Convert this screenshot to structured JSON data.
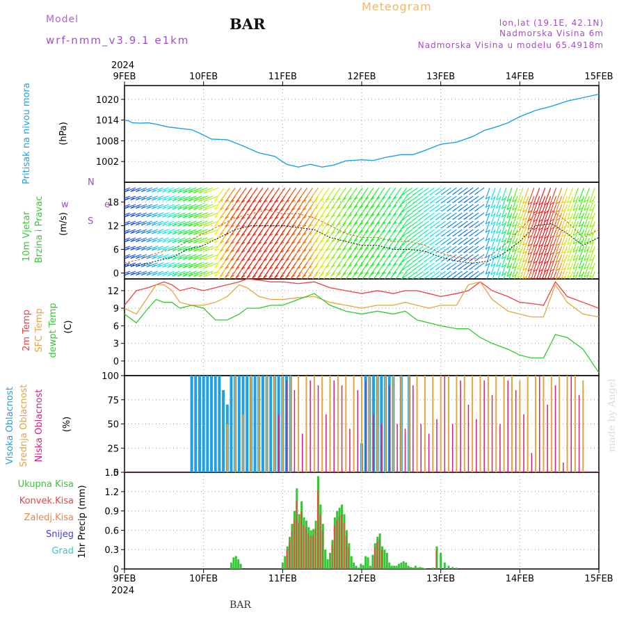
{
  "header": {
    "model_label": "Model",
    "model_name": "wrf-nmm_v3.9.1 e1km",
    "station": "BAR",
    "title": "Meteogram",
    "location": "lon,lat (19.1E, 42.1N)",
    "elevation": "Nadmorska Visina 6m",
    "model_elevation": "Nadmorska Visina u modelu 65.4918m",
    "footer_station": "BAR",
    "credit": "made by Angel"
  },
  "time_axis": {
    "year": "2024",
    "ticks": [
      "9FEB",
      "10FEB",
      "11FEB",
      "12FEB",
      "13FEB",
      "14FEB",
      "15FEB"
    ]
  },
  "colors": {
    "pressure": "#1ea0e6",
    "temp2m": "#f04040",
    "sfc_temp": "#e6a53c",
    "dewpt": "#2ecc2e",
    "high_cloud": "#1ea0e6",
    "mid_cloud": "#e6a53c",
    "low_cloud": "#d81e78",
    "total_precip": "#32c832",
    "conv_precip": "#f04040"
  },
  "chart_data": [
    {
      "type": "line",
      "panel": "pressure",
      "ylabel_lines": [
        "Pritisak na nivou mora",
        "(hPa)"
      ],
      "yticks": [
        1002,
        1008,
        1014,
        1020
      ],
      "ylim": [
        996,
        1024
      ],
      "grid": true,
      "x_days": [
        0,
        0.05,
        0.1,
        0.2,
        0.3,
        0.4,
        0.55,
        0.7,
        0.85,
        0.95,
        1.1,
        1.3,
        1.5,
        1.7,
        1.9,
        2.05,
        2.2,
        2.35,
        2.5,
        2.65,
        2.8,
        3.0,
        3.15,
        3.3,
        3.5,
        3.65,
        3.8,
        4.0,
        4.2,
        4.4,
        4.55,
        4.7,
        4.85,
        5.0,
        5.2,
        5.4,
        5.6,
        5.8,
        6.0
      ],
      "series": [
        {
          "name": "Pritisak na nivou mora",
          "values": [
            1014,
            1013.8,
            1013.2,
            1013.1,
            1013.2,
            1012.8,
            1012,
            1011.6,
            1011.2,
            1010.2,
            1008.5,
            1008.3,
            1006.5,
            1004.5,
            1003.5,
            1001.2,
            1000.4,
            1001.2,
            1000.4,
            1001.0,
            1002.2,
            1002.5,
            1002.3,
            1003.2,
            1004.0,
            1004.0,
            1005.2,
            1007.0,
            1007.6,
            1009.2,
            1011.0,
            1012.0,
            1013.2,
            1015.0,
            1016.8,
            1018.0,
            1019.5,
            1020.5,
            1021.5
          ]
        }
      ]
    },
    {
      "type": "line",
      "panel": "wind",
      "ylabel_lines": [
        "10m Vjetar",
        "Brzina i Pravac",
        "(m/s)"
      ],
      "compass": {
        "w": "w",
        "e": "e",
        "n": "N",
        "s": "S"
      },
      "yticks": [
        0,
        6,
        12,
        18
      ],
      "ylim": [
        -1.5,
        23
      ],
      "x_days": [
        0,
        0.2,
        0.4,
        0.6,
        0.8,
        1.0,
        1.2,
        1.4,
        1.6,
        1.8,
        2.0,
        2.2,
        2.4,
        2.6,
        2.8,
        3.0,
        3.2,
        3.4,
        3.6,
        3.8,
        4.0,
        4.2,
        4.4,
        4.6,
        4.8,
        5.0,
        5.2,
        5.4,
        5.6,
        5.8,
        6.0
      ],
      "series": [
        {
          "name": "speed",
          "values": [
            2,
            2,
            3,
            4,
            6,
            7,
            9,
            11,
            12,
            12,
            12,
            11.5,
            11,
            9,
            8,
            7,
            7,
            6,
            6,
            5.5,
            4,
            3,
            2.5,
            3,
            5,
            8,
            12,
            12.5,
            10,
            7,
            9
          ]
        },
        {
          "name": "gust",
          "values": [
            2.5,
            3.5,
            5,
            6,
            8,
            10,
            12,
            14,
            15,
            16,
            15,
            15,
            14,
            12,
            10,
            9,
            9,
            8,
            8,
            7,
            5,
            4,
            3.5,
            4,
            7,
            11,
            15,
            16,
            13,
            9,
            11
          ]
        }
      ]
    },
    {
      "type": "line",
      "panel": "temperature",
      "ylabel_lines": [
        "2m Temp",
        "SFC Temp",
        "dewpt Temp",
        "(C)"
      ],
      "yticks": [
        0,
        3,
        6,
        9,
        12
      ],
      "ylim": [
        -2.5,
        14
      ],
      "x_days": [
        0,
        0.15,
        0.3,
        0.4,
        0.5,
        0.6,
        0.7,
        0.85,
        1.0,
        1.15,
        1.3,
        1.45,
        1.55,
        1.7,
        1.85,
        2.0,
        2.2,
        2.4,
        2.6,
        2.8,
        3.0,
        3.2,
        3.4,
        3.55,
        3.7,
        3.85,
        4.0,
        4.2,
        4.35,
        4.5,
        4.65,
        4.85,
        5.0,
        5.15,
        5.3,
        5.45,
        5.6,
        5.8,
        6.0
      ],
      "series": [
        {
          "name": "2m Temp",
          "values": [
            9.5,
            12,
            12.5,
            13,
            13.5,
            13,
            12,
            12.5,
            12,
            12.5,
            13,
            13.5,
            14,
            13.8,
            13.5,
            13.5,
            13.2,
            13.5,
            12.5,
            12,
            11.5,
            12,
            11.5,
            12,
            12,
            11.5,
            11,
            11.5,
            12,
            13.5,
            12,
            11,
            10,
            9.8,
            9.5,
            13.5,
            11,
            10,
            9
          ]
        },
        {
          "name": "SFC Temp",
          "values": [
            9,
            8,
            11,
            13,
            13,
            12,
            10,
            9.5,
            9.5,
            10,
            11,
            13,
            12.5,
            11,
            10.5,
            10.5,
            10.8,
            11,
            10,
            9.5,
            9,
            9.5,
            9.5,
            10,
            9.5,
            9,
            9.5,
            9.5,
            13,
            13.5,
            10.5,
            8.5,
            8,
            7.5,
            7.5,
            13,
            10,
            8,
            7.5
          ]
        },
        {
          "name": "dewpt Temp",
          "values": [
            8,
            6.5,
            9,
            10.5,
            10,
            10,
            9,
            9.5,
            9,
            7,
            7,
            8,
            9,
            9,
            9.5,
            9.5,
            10.5,
            11.5,
            9.5,
            8.5,
            8,
            8.5,
            8,
            8.5,
            7,
            6.5,
            6,
            5.5,
            5.5,
            4,
            3,
            2,
            1,
            0.5,
            0.5,
            4.5,
            4,
            2,
            -2
          ]
        }
      ]
    },
    {
      "type": "bar",
      "panel": "cloud",
      "ylabel_lines": [
        "Visoka Oblacnost",
        "Srednja Oblacnost",
        "Niska Oblacnost",
        "(%)"
      ],
      "yticks": [
        0,
        25,
        50,
        75,
        100
      ],
      "ylim": [
        0,
        100
      ],
      "series": [
        {
          "name": "Visoka Oblacnost",
          "days": [
            0.85,
            0.9,
            0.95,
            1.0,
            1.05,
            1.1,
            1.15,
            1.2,
            1.25,
            1.3,
            1.35,
            1.4,
            1.45,
            1.5,
            1.55,
            1.6,
            1.65,
            1.7,
            1.75,
            1.8,
            1.85,
            1.9,
            1.95,
            2.0,
            2.05,
            2.1,
            3.0,
            3.05,
            3.1,
            3.15,
            3.2,
            3.25,
            3.3,
            3.35,
            3.4,
            3.5,
            3.6
          ],
          "values": [
            100,
            100,
            100,
            100,
            100,
            100,
            100,
            100,
            85,
            70,
            100,
            100,
            100,
            100,
            100,
            100,
            100,
            100,
            100,
            100,
            100,
            100,
            100,
            100,
            100,
            100,
            30,
            100,
            100,
            100,
            100,
            100,
            100,
            100,
            100,
            100,
            100
          ]
        },
        {
          "name": "Srednja Oblacnost",
          "days": [
            1.3,
            1.4,
            1.5,
            1.6,
            1.7,
            1.8,
            1.9,
            2.0,
            2.1,
            2.2,
            2.3,
            2.4,
            2.5,
            2.6,
            2.7,
            2.8,
            2.9,
            3.0,
            3.1,
            3.2,
            3.3,
            3.4,
            3.5,
            3.6,
            3.7,
            3.8,
            3.9,
            4.0,
            4.1,
            4.2,
            4.3,
            4.4,
            4.5,
            4.6,
            4.7,
            4.8,
            4.9,
            5.0,
            5.1,
            5.2,
            5.3,
            5.4,
            5.5,
            5.6,
            5.7,
            5.8
          ],
          "values": [
            50,
            100,
            60,
            100,
            100,
            100,
            100,
            100,
            100,
            100,
            100,
            100,
            100,
            100,
            100,
            100,
            100,
            100,
            100,
            100,
            100,
            100,
            100,
            100,
            100,
            100,
            100,
            100,
            100,
            100,
            100,
            100,
            100,
            100,
            100,
            100,
            100,
            95,
            100,
            100,
            100,
            100,
            100,
            100,
            100,
            95
          ]
        },
        {
          "name": "Niska Oblacnost",
          "days": [
            1.95,
            2.05,
            2.15,
            2.25,
            2.35,
            2.45,
            2.55,
            2.65,
            2.75,
            2.85,
            2.95,
            3.05,
            3.15,
            3.25,
            3.35,
            3.45,
            3.55,
            3.65,
            3.75,
            3.85,
            3.95,
            4.05,
            4.15,
            4.25,
            4.35,
            4.45,
            4.55,
            4.65,
            4.75,
            4.85,
            4.95,
            5.05,
            5.15,
            5.25,
            5.35,
            5.45,
            5.55,
            5.65,
            5.75,
            5.85
          ],
          "values": [
            60,
            95,
            85,
            40,
            95,
            90,
            60,
            95,
            90,
            45,
            85,
            95,
            60,
            50,
            90,
            50,
            45,
            90,
            50,
            40,
            55,
            100,
            50,
            95,
            70,
            55,
            95,
            80,
            50,
            95,
            85,
            60,
            20,
            100,
            70,
            90,
            10,
            100,
            80,
            0
          ]
        }
      ]
    },
    {
      "type": "bar",
      "panel": "precip",
      "ylabel_lines": [
        "1hr Precip (mm)"
      ],
      "legend": [
        "Ukupna Kisa",
        "Konvek.Kisa",
        "Zaledj.Kisa",
        "Snijeg",
        "Grad"
      ],
      "yticks": [
        0,
        0.3,
        0.6,
        0.9,
        1.2,
        1.5
      ],
      "ylim": [
        0,
        1.5
      ],
      "series": [
        {
          "name": "Ukupna Kisa",
          "days": [
            1.35,
            1.38,
            1.41,
            1.44,
            1.47,
            2.0,
            2.03,
            2.06,
            2.09,
            2.12,
            2.15,
            2.18,
            2.21,
            2.24,
            2.27,
            2.3,
            2.33,
            2.36,
            2.39,
            2.42,
            2.45,
            2.48,
            2.51,
            2.54,
            2.57,
            2.6,
            2.63,
            2.66,
            2.69,
            2.72,
            2.75,
            2.78,
            2.81,
            2.84,
            2.87,
            2.9,
            2.93,
            2.96,
            2.99,
            3.02,
            3.05,
            3.08,
            3.11,
            3.14,
            3.17,
            3.2,
            3.23,
            3.26,
            3.29,
            3.32,
            3.35,
            3.38,
            3.41,
            3.44,
            3.47,
            3.5,
            3.53,
            3.56,
            3.59,
            3.62,
            3.65,
            3.68,
            3.71,
            3.74,
            3.77,
            3.8,
            3.9,
            3.95,
            4.0,
            4.05,
            4.1,
            4.15,
            4.2
          ],
          "values": [
            0.1,
            0.18,
            0.2,
            0.15,
            0.08,
            0.1,
            0.2,
            0.35,
            0.5,
            0.7,
            0.9,
            1.25,
            0.85,
            1.05,
            0.8,
            0.75,
            0.65,
            0.6,
            0.62,
            0.75,
            1.44,
            1.0,
            0.7,
            0.3,
            0.15,
            0.25,
            0.45,
            0.8,
            0.9,
            0.95,
            1.0,
            0.85,
            0.6,
            0.4,
            0.2,
            0.1,
            0.05,
            0.02,
            0.08,
            0.06,
            0.2,
            0.18,
            0.05,
            0.22,
            0.4,
            0.5,
            0.55,
            0.35,
            0.3,
            0.25,
            0.1,
            0.05,
            0.05,
            0.05,
            0.08,
            0.1,
            0.12,
            0.1,
            0.05,
            0.03,
            0.02,
            0.05,
            0.02,
            0.03,
            0.02,
            0.01,
            0.02,
            0.35,
            0.25,
            0.1,
            0.05,
            0.03,
            0.02
          ]
        }
      ]
    }
  ]
}
